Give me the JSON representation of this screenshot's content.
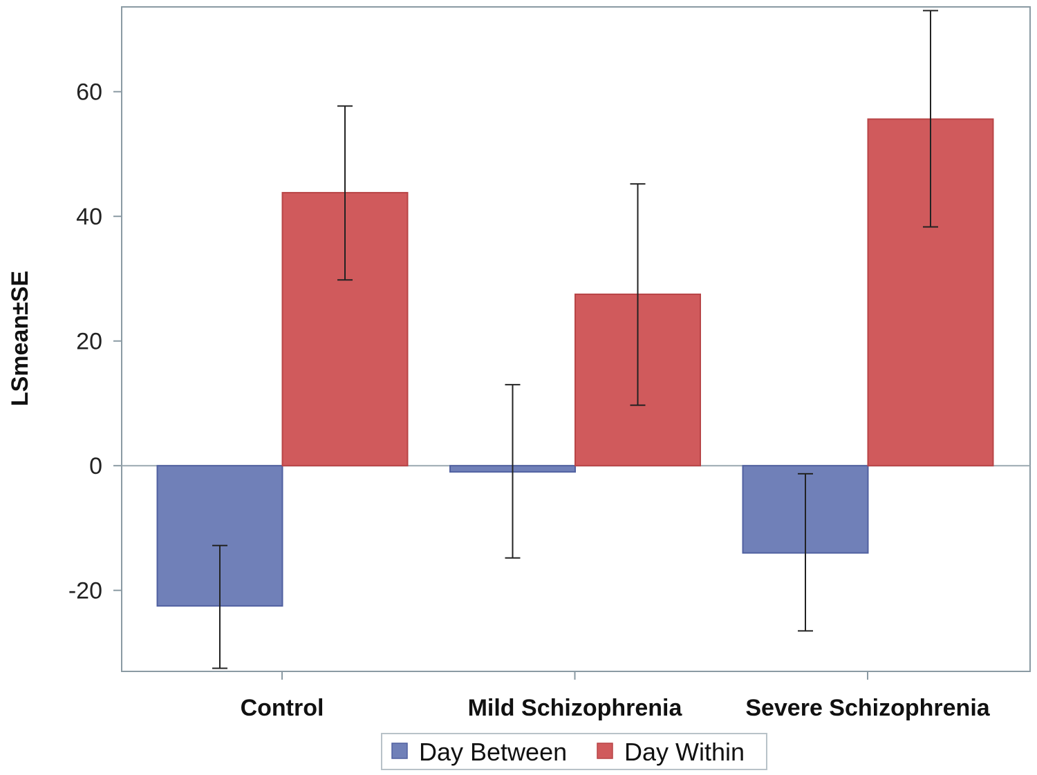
{
  "chart_data": {
    "type": "bar",
    "title": "",
    "xlabel": "",
    "ylabel": "LSmean±SE",
    "categories": [
      "Control",
      "Mild Schizophrenia",
      "Severe Schizophrenia"
    ],
    "series": [
      {
        "name": "Day Between",
        "color": "#7080b8",
        "values": [
          -22.5,
          -1.0,
          -14.0
        ],
        "err_low": [
          -32.5,
          -14.8,
          -26.5
        ],
        "err_high": [
          -12.8,
          13.0,
          -1.3
        ]
      },
      {
        "name": "Day Within",
        "color": "#d05a5c",
        "values": [
          43.8,
          27.5,
          55.6
        ],
        "err_low": [
          29.8,
          9.7,
          38.3
        ],
        "err_high": [
          57.7,
          45.2,
          73.0
        ]
      }
    ],
    "ylim": [
      -33.0,
      73.6
    ],
    "yticks": [
      -20,
      0,
      20,
      40,
      60
    ],
    "ytick_labels": [
      "-20",
      "0",
      "20",
      "40",
      "60"
    ],
    "zero_line": true,
    "grid": false,
    "legend_position": "bottom-center"
  }
}
